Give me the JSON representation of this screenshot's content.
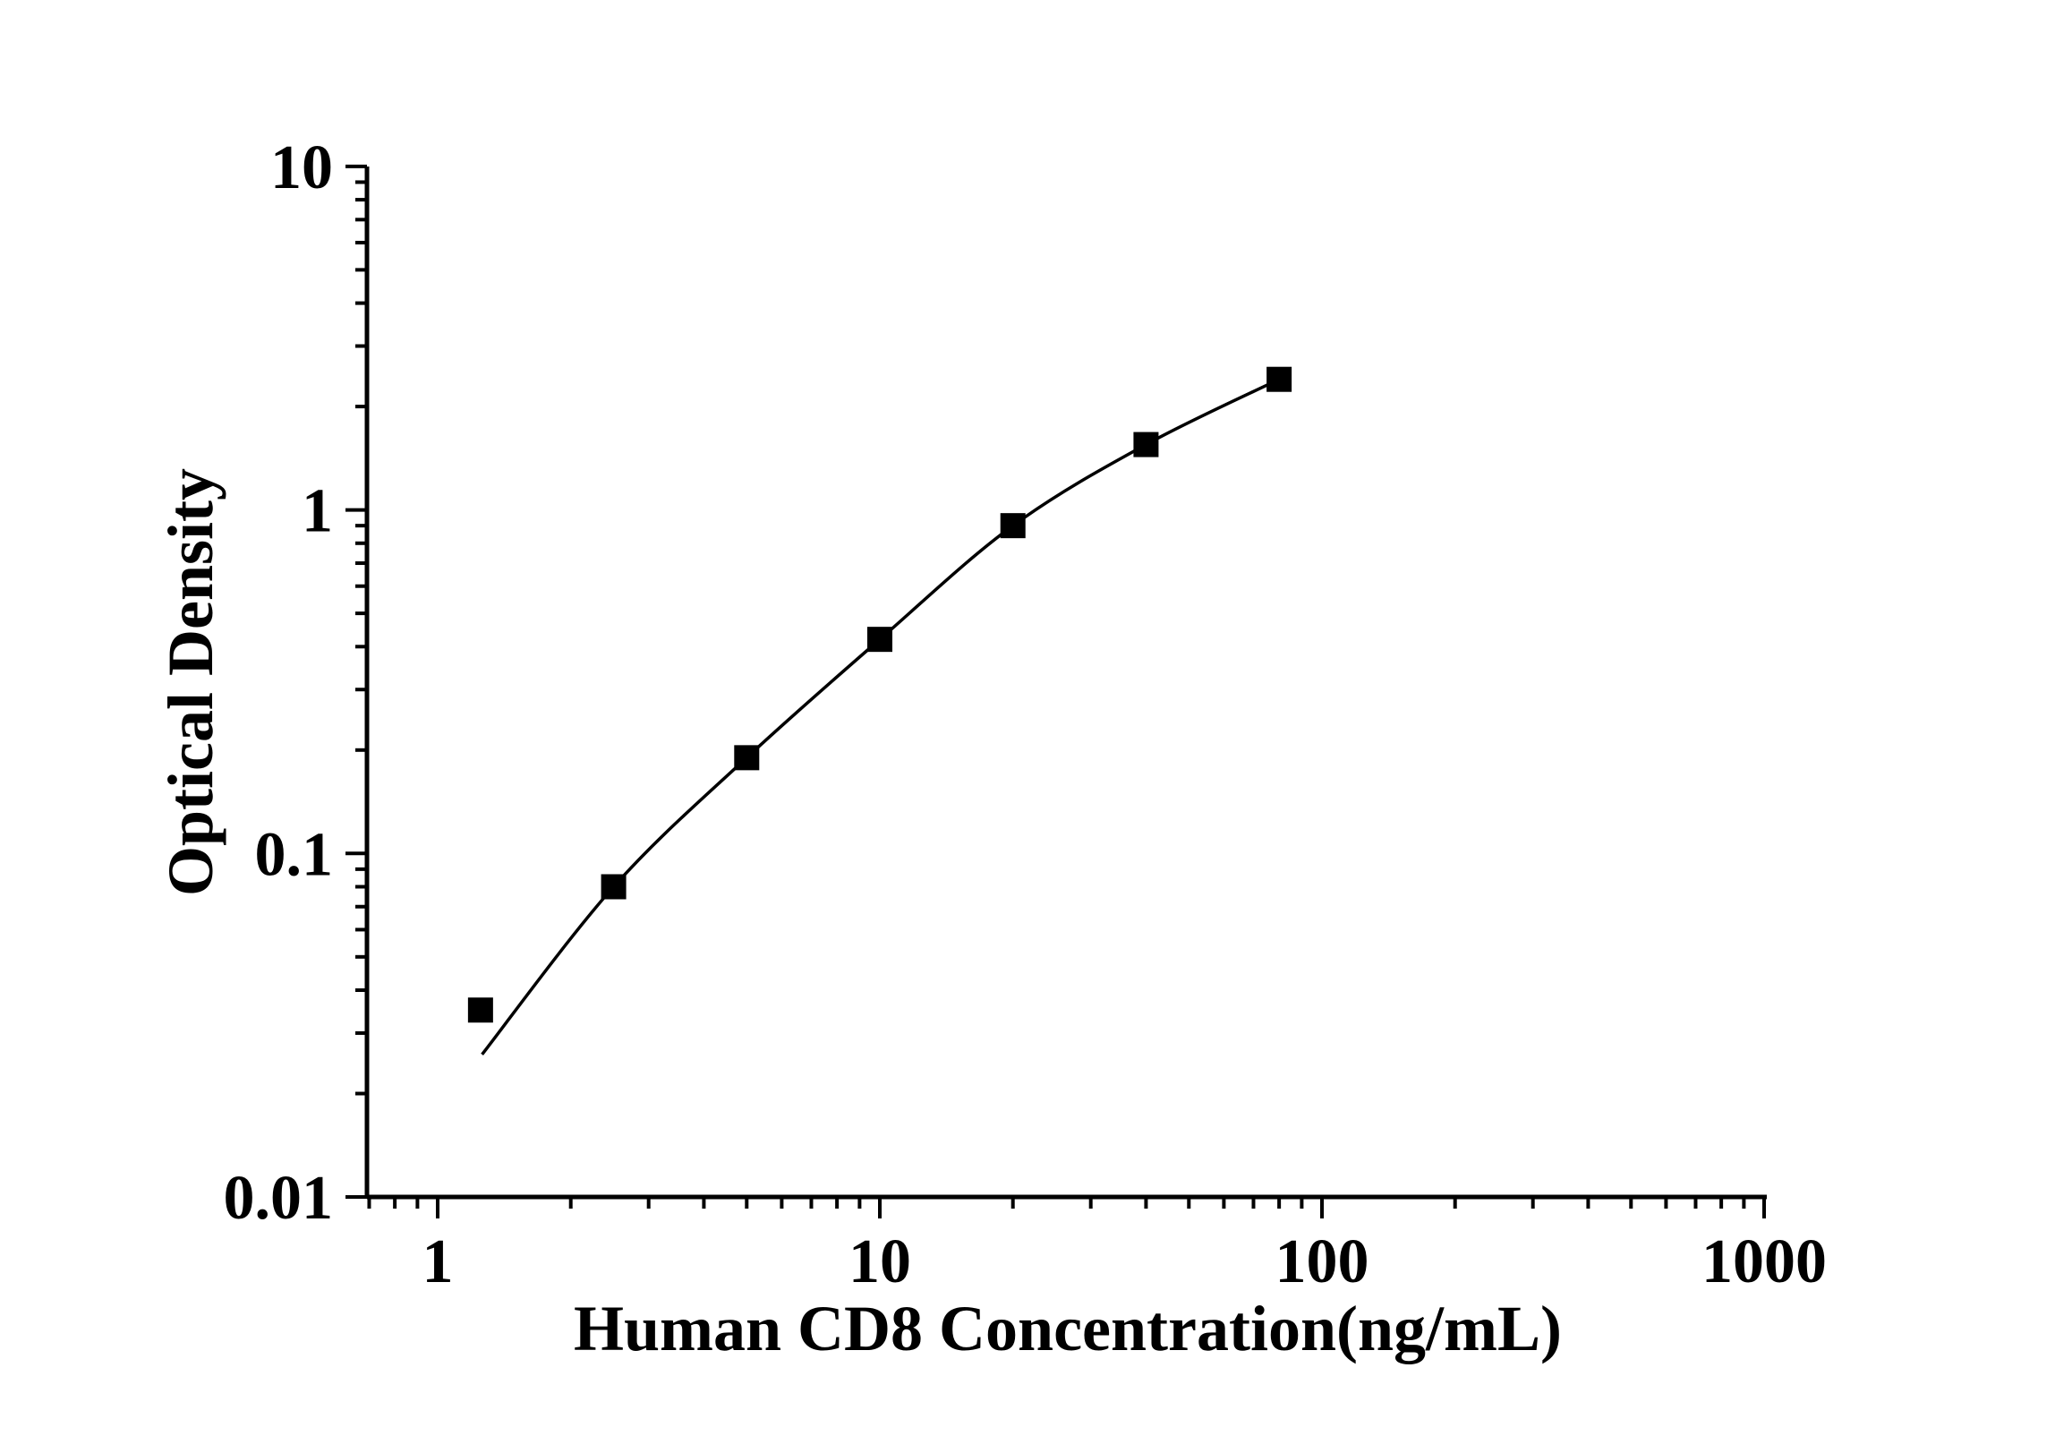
{
  "figure": {
    "background": "#ffffff"
  },
  "chart_data": {
    "type": "scatter",
    "title": "",
    "xlabel": "Human CD8 Concentration(ng/mL)",
    "ylabel": "Optical Density",
    "x_scale": "log",
    "y_scale": "log",
    "xlim": [
      0.69,
      1000
    ],
    "ylim": [
      0.01,
      10
    ],
    "x_ticks": [
      1,
      10,
      100,
      1000
    ],
    "x_tick_labels": [
      "1",
      "10",
      "100",
      "1000"
    ],
    "y_ticks": [
      0.01,
      0.1,
      1,
      10
    ],
    "y_tick_labels": [
      "0.01",
      "0.1",
      "1",
      "10"
    ],
    "grid": false,
    "legend": false,
    "marker_size_px": 28,
    "colors": {
      "axis": "#000000",
      "marker": "#000000",
      "line": "#000000",
      "background": "#ffffff"
    },
    "series": [
      {
        "name": "standard-curve-points",
        "marker": "square",
        "color": "#000000",
        "x": [
          1.25,
          2.5,
          5,
          10,
          20,
          40,
          80
        ],
        "y": [
          0.035,
          0.08,
          0.19,
          0.42,
          0.9,
          1.55,
          2.4
        ]
      }
    ],
    "fit_curve_start": {
      "x": 1.26,
      "y": 0.026
    }
  }
}
